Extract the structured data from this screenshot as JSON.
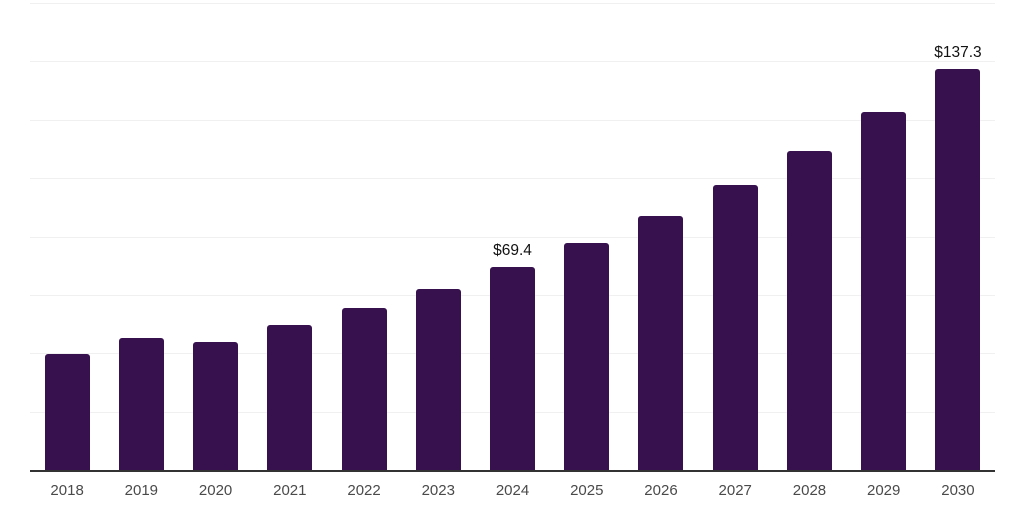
{
  "chart_data": {
    "type": "bar",
    "title": "",
    "xlabel": "",
    "ylabel": "",
    "categories": [
      "2018",
      "2019",
      "2020",
      "2021",
      "2022",
      "2023",
      "2024",
      "2025",
      "2026",
      "2027",
      "2028",
      "2029",
      "2030"
    ],
    "values": [
      39.6,
      45.2,
      43.7,
      49.8,
      55.5,
      62.1,
      69.4,
      77.8,
      87.1,
      97.6,
      109.4,
      122.5,
      137.3
    ],
    "data_labels": [
      "",
      "",
      "",
      "",
      "",
      "",
      "$69.4",
      "",
      "",
      "",
      "",
      "",
      "$137.3"
    ],
    "ylim": [
      0,
      160
    ],
    "gridline_step": 20,
    "grid": true,
    "legend": false,
    "bar_color": "#36114E",
    "gridline_color": "#f0f0f0",
    "axis_line_color": "#333333",
    "tick_label_color": "#4a4a4a",
    "data_label_color": "#121212",
    "background_color": "#ffffff"
  }
}
